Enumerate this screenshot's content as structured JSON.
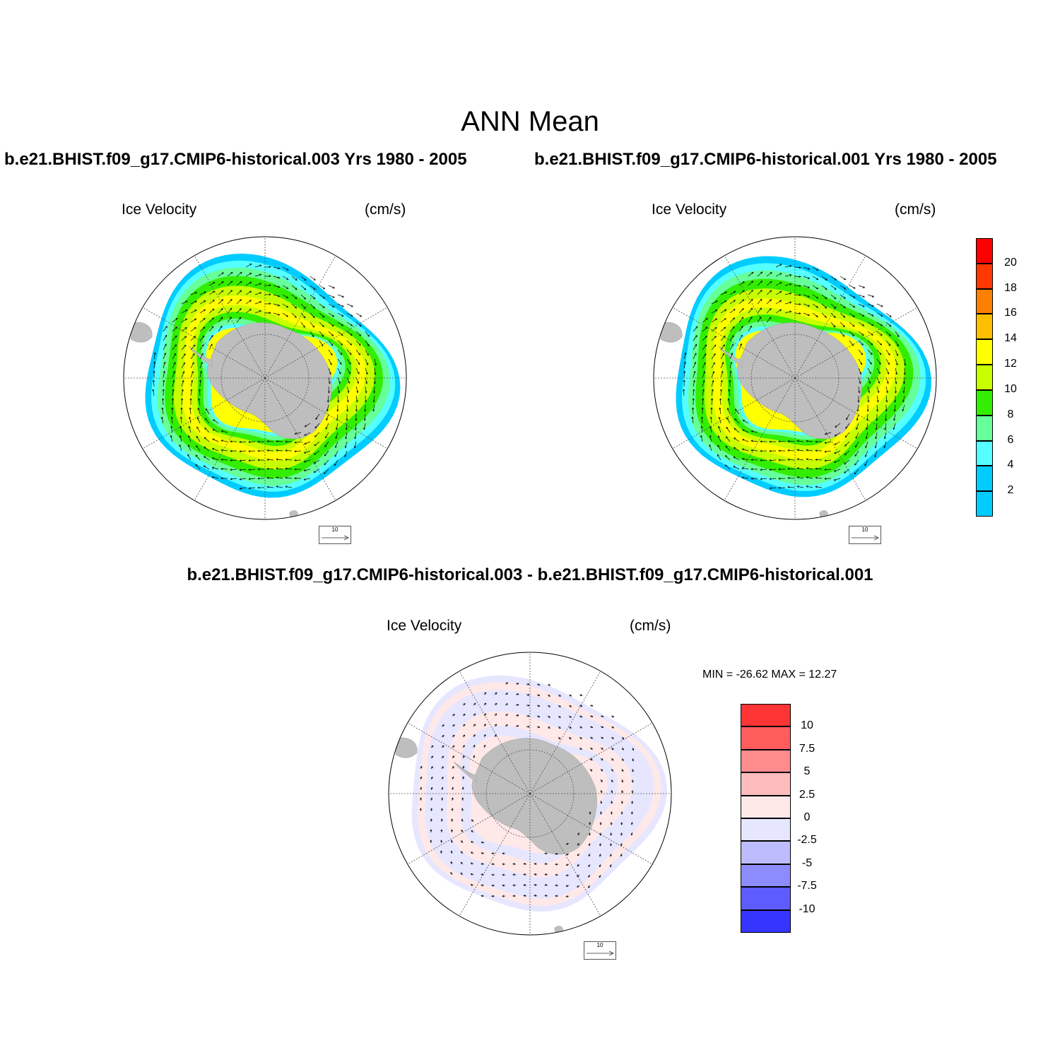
{
  "figure": {
    "title": "ANN Mean"
  },
  "panels": [
    {
      "id": "case1",
      "title": "b.e21.BHIST.f09_g17.CMIP6-historical.003  Yrs 1980 - 2005",
      "left_label": "Ice Velocity",
      "right_label": "(cm/s)",
      "reference_vector": "10",
      "fill_scheme": "speed"
    },
    {
      "id": "case2",
      "title": "b.e21.BHIST.f09_g17.CMIP6-historical.001  Yrs 1980 - 2005",
      "left_label": "Ice Velocity",
      "right_label": "(cm/s)",
      "reference_vector": "10",
      "fill_scheme": "speed"
    },
    {
      "id": "difference",
      "title": "b.e21.BHIST.f09_g17.CMIP6-historical.003 - b.e21.BHIST.f09_g17.CMIP6-historical.001",
      "left_label": "Ice Velocity",
      "right_label": "(cm/s)",
      "reference_vector": "10",
      "fill_scheme": "difference",
      "minmax_text": "MIN = -26.62 MAX =  12.27"
    }
  ],
  "colorbars": {
    "speed": {
      "labels": [
        "20",
        "18",
        "16",
        "14",
        "12",
        "10",
        "8",
        "6",
        "4",
        "2"
      ],
      "colors": [
        "#ff0000",
        "#ff3800",
        "#ff7f00",
        "#ffbf00",
        "#ffff00",
        "#c8ff00",
        "#33ee00",
        "#66ff99",
        "#55ffff",
        "#00ccff",
        "#00ccff"
      ]
    },
    "difference": {
      "labels": [
        "10",
        "7.5",
        "5",
        "2.5",
        "0",
        "-2.5",
        "-5",
        "-7.5",
        "-10"
      ],
      "colors": [
        "#ff3535",
        "#ff5c5c",
        "#ff8c8c",
        "#ffbcbc",
        "#ffe8e8",
        "#e6e6ff",
        "#bcbcff",
        "#8c8cff",
        "#5c5cff",
        "#3535ff"
      ]
    }
  },
  "map": {
    "land_color": "#bebebe",
    "gridline_color": "#555555"
  }
}
